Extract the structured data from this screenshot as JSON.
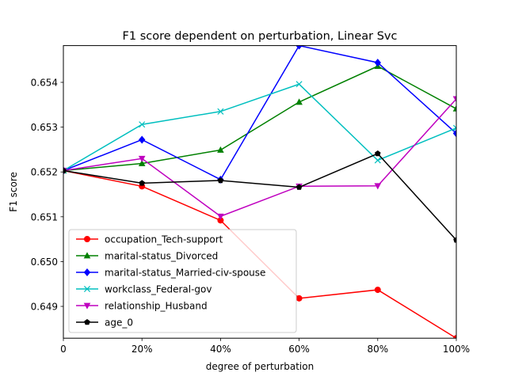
{
  "chart_data": {
    "type": "line",
    "title": "F1 score dependent on perturbation, Linear Svc",
    "xlabel": "degree of perturbation",
    "ylabel": "F1 score",
    "x": [
      0,
      20,
      40,
      60,
      80,
      100
    ],
    "x_tick_values": [
      0,
      20,
      40,
      60,
      80,
      100
    ],
    "x_tick_labels": [
      "0",
      "20%",
      "40%",
      "60%",
      "80%",
      "100%"
    ],
    "xlim": [
      0,
      100
    ],
    "y_tick_values": [
      0.649,
      0.65,
      0.651,
      0.652,
      0.653,
      0.654
    ],
    "y_tick_labels": [
      "0.649",
      "0.650",
      "0.651",
      "0.652",
      "0.653",
      "0.654"
    ],
    "ylim": [
      0.64829,
      0.65482
    ],
    "grid": false,
    "legend_position": "lower-left",
    "series": [
      {
        "name": "occupation_Tech-support",
        "color": "#ff0000",
        "marker": "circle",
        "values": [
          0.65203,
          0.65168,
          0.65092,
          0.64918,
          0.64937,
          0.64829
        ]
      },
      {
        "name": "marital-status_Divorced",
        "color": "#008000",
        "marker": "triangle-up",
        "values": [
          0.65203,
          0.65219,
          0.65249,
          0.65356,
          0.65436,
          0.65341
        ]
      },
      {
        "name": "marital-status_Married-civ-spouse",
        "color": "#0000ff",
        "marker": "diamond",
        "values": [
          0.65203,
          0.65272,
          0.65183,
          0.65482,
          0.65444,
          0.65286
        ]
      },
      {
        "name": "workclass_Federal-gov",
        "color": "#00bfbf",
        "marker": "x",
        "values": [
          0.65203,
          0.65306,
          0.65335,
          0.65396,
          0.65226,
          0.65298
        ]
      },
      {
        "name": "relationship_Husband",
        "color": "#bf00bf",
        "marker": "triangle-down",
        "values": [
          0.65203,
          0.6523,
          0.65101,
          0.65168,
          0.65169,
          0.65363
        ]
      },
      {
        "name": "age_0",
        "color": "#000000",
        "marker": "pentagon",
        "values": [
          0.65203,
          0.65175,
          0.65181,
          0.65166,
          0.65241,
          0.65048
        ]
      }
    ]
  }
}
